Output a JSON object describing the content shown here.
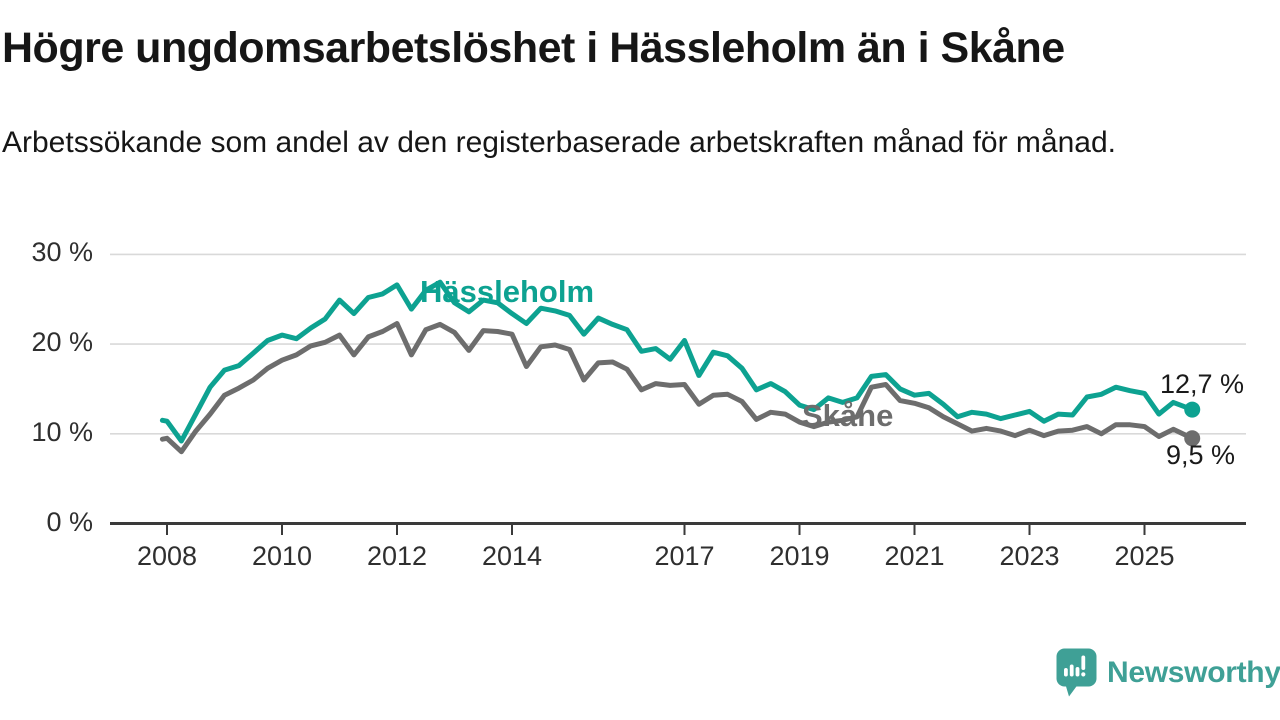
{
  "header": {
    "title": "Högre ungdomsarbetslöshet i Hässleholm än i Skåne",
    "subtitle": "Arbetssökande som andel av den registerbaserade arbetskraften månad för månad."
  },
  "footer": {
    "brand": "Newsworthy"
  },
  "colors": {
    "accent_teal": "#0da291",
    "series_gray": "#6d6d6d",
    "grid": "#d9d9d9",
    "axis": "#3a3a3a",
    "text_dark": "#1a1a1a",
    "logo_teal": "#3fa096"
  },
  "chart_data": {
    "type": "line",
    "title": "Högre ungdomsarbetslöshet i Hässleholm än i Skåne",
    "subtitle": "Arbetssökande som andel av den registerbaserade arbetskraften månad för månad.",
    "unit": "%",
    "grid": "horizontal-only",
    "legend_position": "inline-labels",
    "x_axis": {
      "ticks": [
        2008,
        2010,
        2012,
        2014,
        2017,
        2019,
        2021,
        2023,
        2025
      ],
      "range": [
        2007.9,
        2025.95
      ]
    },
    "y_axis": {
      "ticks": [
        {
          "value": 30,
          "label": "30 %"
        },
        {
          "value": 20,
          "label": "20 %"
        },
        {
          "value": 10,
          "label": "10 %"
        },
        {
          "value": 0,
          "label": "0 %"
        }
      ],
      "range": [
        0,
        30
      ]
    },
    "series": [
      {
        "name": "Hässleholm",
        "color": "#0da291",
        "end_label": "12,7 %",
        "final_value": 12.7,
        "x": [
          2007.92,
          2008.0,
          2008.25,
          2008.5,
          2008.75,
          2009.0,
          2009.25,
          2009.5,
          2009.75,
          2010.0,
          2010.25,
          2010.5,
          2010.75,
          2011.0,
          2011.25,
          2011.5,
          2011.75,
          2012.0,
          2012.25,
          2012.5,
          2012.75,
          2013.0,
          2013.25,
          2013.5,
          2013.75,
          2014.0,
          2014.25,
          2014.5,
          2014.75,
          2015.0,
          2015.25,
          2015.5,
          2015.75,
          2016.0,
          2016.25,
          2016.5,
          2016.75,
          2017.0,
          2017.25,
          2017.5,
          2017.75,
          2018.0,
          2018.25,
          2018.5,
          2018.75,
          2019.0,
          2019.25,
          2019.5,
          2019.75,
          2020.0,
          2020.25,
          2020.5,
          2020.75,
          2021.0,
          2021.25,
          2021.5,
          2021.75,
          2022.0,
          2022.25,
          2022.5,
          2022.75,
          2023.0,
          2023.25,
          2023.5,
          2023.75,
          2024.0,
          2024.25,
          2024.5,
          2024.75,
          2025.0,
          2025.25,
          2025.5,
          2025.83
        ],
        "values": [
          11.5,
          11.4,
          9.2,
          12.2,
          15.2,
          17.1,
          17.6,
          19.0,
          20.4,
          21.0,
          20.6,
          21.8,
          22.8,
          24.9,
          23.4,
          25.2,
          25.6,
          26.6,
          23.9,
          26.0,
          26.9,
          24.6,
          23.6,
          24.9,
          24.6,
          23.4,
          22.3,
          24.0,
          23.7,
          23.2,
          21.1,
          22.9,
          22.2,
          21.6,
          19.2,
          19.5,
          18.3,
          20.4,
          16.5,
          19.1,
          18.7,
          17.3,
          14.9,
          15.6,
          14.7,
          13.2,
          12.7,
          14.0,
          13.5,
          14.0,
          16.4,
          16.6,
          15.0,
          14.3,
          14.5,
          13.3,
          11.9,
          12.4,
          12.2,
          11.7,
          12.1,
          12.5,
          11.4,
          12.2,
          12.1,
          14.1,
          14.4,
          15.2,
          14.8,
          14.5,
          12.2,
          13.5,
          12.7
        ]
      },
      {
        "name": "Skåne",
        "color": "#6d6d6d",
        "end_label": "9,5 %",
        "final_value": 9.5,
        "x": [
          2007.92,
          2008.0,
          2008.25,
          2008.5,
          2008.75,
          2009.0,
          2009.25,
          2009.5,
          2009.75,
          2010.0,
          2010.25,
          2010.5,
          2010.75,
          2011.0,
          2011.25,
          2011.5,
          2011.75,
          2012.0,
          2012.25,
          2012.5,
          2012.75,
          2013.0,
          2013.25,
          2013.5,
          2013.75,
          2014.0,
          2014.25,
          2014.5,
          2014.75,
          2015.0,
          2015.25,
          2015.5,
          2015.75,
          2016.0,
          2016.25,
          2016.5,
          2016.75,
          2017.0,
          2017.25,
          2017.5,
          2017.75,
          2018.0,
          2018.25,
          2018.5,
          2018.75,
          2019.0,
          2019.25,
          2019.5,
          2019.75,
          2020.0,
          2020.25,
          2020.5,
          2020.75,
          2021.0,
          2021.25,
          2021.5,
          2021.75,
          2022.0,
          2022.25,
          2022.5,
          2022.75,
          2023.0,
          2023.25,
          2023.5,
          2023.75,
          2024.0,
          2024.25,
          2024.5,
          2024.75,
          2025.0,
          2025.25,
          2025.5,
          2025.83
        ],
        "values": [
          9.4,
          9.5,
          8.0,
          10.3,
          12.2,
          14.3,
          15.1,
          16.0,
          17.3,
          18.2,
          18.8,
          19.8,
          20.2,
          21.0,
          18.8,
          20.8,
          21.4,
          22.3,
          18.8,
          21.6,
          22.2,
          21.3,
          19.3,
          21.5,
          21.4,
          21.1,
          17.5,
          19.7,
          19.9,
          19.4,
          16.0,
          17.9,
          18.0,
          17.2,
          14.9,
          15.6,
          15.4,
          15.5,
          13.3,
          14.3,
          14.4,
          13.6,
          11.6,
          12.4,
          12.2,
          11.3,
          10.8,
          11.3,
          11.5,
          11.9,
          15.2,
          15.5,
          13.7,
          13.4,
          12.9,
          11.9,
          11.1,
          10.3,
          10.6,
          10.3,
          9.8,
          10.4,
          9.8,
          10.3,
          10.4,
          10.8,
          10.0,
          11.0,
          11.0,
          10.8,
          9.7,
          10.5,
          9.5
        ]
      }
    ]
  }
}
